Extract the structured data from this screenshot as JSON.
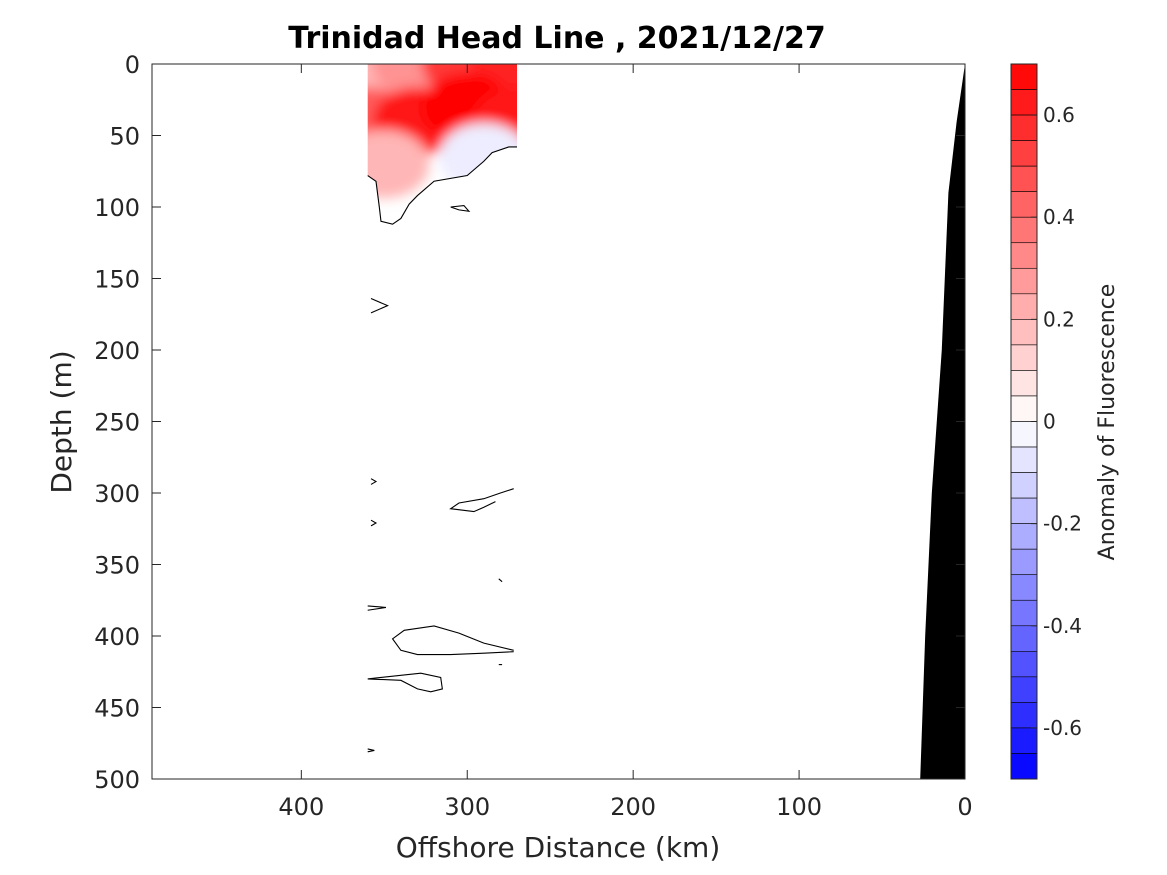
{
  "chart_data": {
    "type": "heatmap",
    "title": "Trinidad Head Line , 2021/12/27",
    "xlabel": "Offshore Distance (km)",
    "ylabel": "Depth (m)",
    "xlim": [
      490,
      0
    ],
    "ylim": [
      500,
      0
    ],
    "x_reversed": true,
    "y_reversed": true,
    "xticks": [
      400,
      300,
      200,
      100,
      0
    ],
    "xtick_labels": [
      "400",
      "300",
      "200",
      "100",
      "0"
    ],
    "yticks": [
      0,
      50,
      100,
      150,
      200,
      250,
      300,
      350,
      400,
      450,
      500
    ],
    "ytick_labels": [
      "0",
      "50",
      "100",
      "150",
      "200",
      "250",
      "300",
      "350",
      "400",
      "450",
      "500"
    ],
    "grid": false,
    "colorbar": {
      "label": "Anomaly of Fluorescence",
      "range": [
        -0.7,
        0.7
      ],
      "levels": 28,
      "ticks": [
        -0.6,
        -0.4,
        -0.2,
        0,
        0.2,
        0.4,
        0.6
      ],
      "tick_labels": [
        "-0.6",
        "-0.4",
        "-0.2",
        "0",
        "0.2",
        "0.4",
        "0.6"
      ],
      "low_color": "#0000ff",
      "mid_color": "#ffffff",
      "high_color": "#ff0000"
    },
    "data_extent": {
      "x_min": 270,
      "x_max": 360,
      "depth_max": 80
    },
    "anomaly_samples": [
      {
        "x": 360,
        "depth": 0,
        "value": 0.2
      },
      {
        "x": 330,
        "depth": 0,
        "value": 0.3
      },
      {
        "x": 300,
        "depth": 0,
        "value": 0.55
      },
      {
        "x": 270,
        "depth": 0,
        "value": 0.6
      },
      {
        "x": 360,
        "depth": 40,
        "value": 0.45
      },
      {
        "x": 330,
        "depth": 40,
        "value": 0.65
      },
      {
        "x": 300,
        "depth": 30,
        "value": 0.7
      },
      {
        "x": 270,
        "depth": 40,
        "value": 0.65
      },
      {
        "x": 350,
        "depth": 70,
        "value": 0.2
      },
      {
        "x": 290,
        "depth": 65,
        "value": -0.05
      }
    ],
    "zero_contours": [
      [
        [
          360,
          78
        ],
        [
          355,
          82
        ],
        [
          353,
          100
        ],
        [
          352,
          110
        ],
        [
          345,
          112
        ],
        [
          340,
          108
        ],
        [
          335,
          98
        ],
        [
          330,
          92
        ],
        [
          320,
          82
        ],
        [
          300,
          78
        ],
        [
          290,
          68
        ],
        [
          285,
          62
        ],
        [
          275,
          58
        ],
        [
          270,
          58
        ]
      ],
      [
        [
          310,
          100
        ],
        [
          302,
          99
        ],
        [
          299,
          103
        ],
        [
          305,
          102
        ],
        [
          310,
          100
        ]
      ],
      [
        [
          358,
          164
        ],
        [
          348,
          169
        ],
        [
          358,
          174
        ]
      ],
      [
        [
          358,
          290
        ],
        [
          355,
          292
        ],
        [
          358,
          294
        ]
      ],
      [
        [
          272,
          297
        ],
        [
          280,
          300
        ],
        [
          290,
          304
        ],
        [
          305,
          307
        ],
        [
          310,
          311
        ],
        [
          296,
          313
        ],
        [
          290,
          310
        ],
        [
          283,
          306
        ]
      ],
      [
        [
          358,
          319
        ],
        [
          355,
          321
        ],
        [
          358,
          323
        ]
      ],
      [
        [
          281,
          360
        ],
        [
          279,
          362
        ]
      ],
      [
        [
          360,
          379
        ],
        [
          349,
          380
        ],
        [
          360,
          382
        ]
      ],
      [
        [
          272,
          410
        ],
        [
          290,
          405
        ],
        [
          305,
          398
        ],
        [
          320,
          393
        ],
        [
          338,
          396
        ],
        [
          345,
          402
        ],
        [
          340,
          410
        ],
        [
          330,
          413
        ],
        [
          310,
          413
        ],
        [
          290,
          412
        ],
        [
          272,
          411
        ]
      ],
      [
        [
          360,
          430
        ],
        [
          340,
          431
        ],
        [
          330,
          437
        ],
        [
          322,
          439
        ],
        [
          315,
          437
        ],
        [
          316,
          429
        ],
        [
          328,
          426
        ],
        [
          360,
          430
        ]
      ],
      [
        [
          360,
          479
        ],
        [
          356,
          480
        ],
        [
          360,
          481
        ]
      ],
      [
        [
          281,
          420
        ],
        [
          279,
          420
        ]
      ]
    ],
    "bathymetry": [
      [
        0,
        0
      ],
      [
        5,
        40
      ],
      [
        10,
        90
      ],
      [
        14,
        200
      ],
      [
        20,
        300
      ],
      [
        24,
        400
      ],
      [
        27,
        500
      ]
    ]
  }
}
